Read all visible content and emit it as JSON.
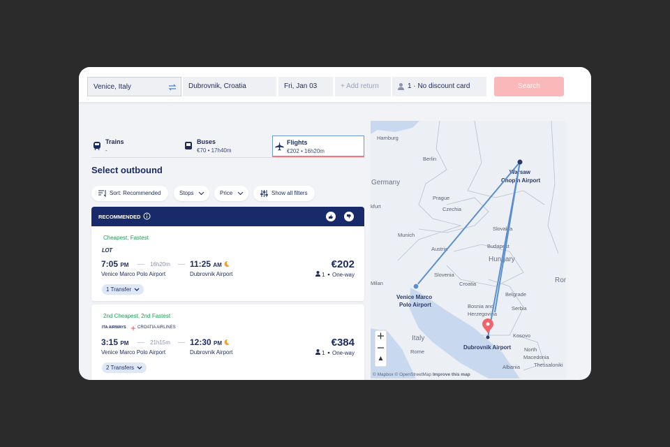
{
  "search": {
    "from": "Venice, Italy",
    "to": "Dubrovnik, Croatia",
    "date": "Fri, Jan 03",
    "return": "+ Add return",
    "passengers": "1 · No discount card",
    "button": "Search"
  },
  "tabs": [
    {
      "label": "Trains",
      "detail": "-"
    },
    {
      "label": "Buses",
      "detail": "€70 • 17h40m"
    },
    {
      "label": "Flights",
      "detail": "€202 • 16h20m"
    }
  ],
  "title": "Select outbound",
  "filters": [
    "Sort: Recommended",
    "Stops",
    "Price",
    "Show all filters"
  ],
  "section": "RECOMMENDED",
  "results": [
    {
      "badge": "Cheapest, Fastest",
      "airlines": [
        "LOT"
      ],
      "depart_time": "7:05",
      "depart_period": "PM",
      "duration": "16h20m",
      "arrive_time": "11:25",
      "arrive_period": "AM",
      "from": "Venice Marco Polo Airport",
      "to": "Dubrovnik Airport",
      "price": "€202",
      "passengers": "1",
      "trip": "One-way",
      "transfers": "1 Transfer"
    },
    {
      "badge": "2nd Cheapest, 2nd Fastest",
      "airlines": [
        "ITA AIRWAYS",
        "CROATIA AIRLINES"
      ],
      "depart_time": "3:15",
      "depart_period": "PM",
      "duration": "21h15m",
      "arrive_time": "12:30",
      "arrive_period": "PM",
      "from": "Venice Marco Polo Airport",
      "to": "Dubrovnik Airport",
      "price": "€384",
      "passengers": "1",
      "trip": "One-way",
      "transfers": "2 Transfers"
    }
  ],
  "map": {
    "labels": [
      "Hamburg",
      "Berlin",
      "Germany",
      "Warsaw",
      "Chopin Airport",
      "Prague",
      "Czechia",
      "kfurt",
      "Slovakia",
      "Munich",
      "Austria",
      "Budapest",
      "Hungary",
      "Slovenia",
      "Milan",
      "Venice Marco",
      "Polo Airport",
      "Croatia",
      "Belgrade",
      "Ror",
      "Bosnia and",
      "Herzegovina",
      "Serbia",
      "Italy",
      "Kosovo",
      "Dubrovnik Airport",
      "North",
      "Macedonia",
      "Rome",
      "Albania",
      "Thessaloniki"
    ],
    "attribution": [
      "© Mapbox",
      "© OpenStreetMap",
      "Improve this map"
    ]
  }
}
